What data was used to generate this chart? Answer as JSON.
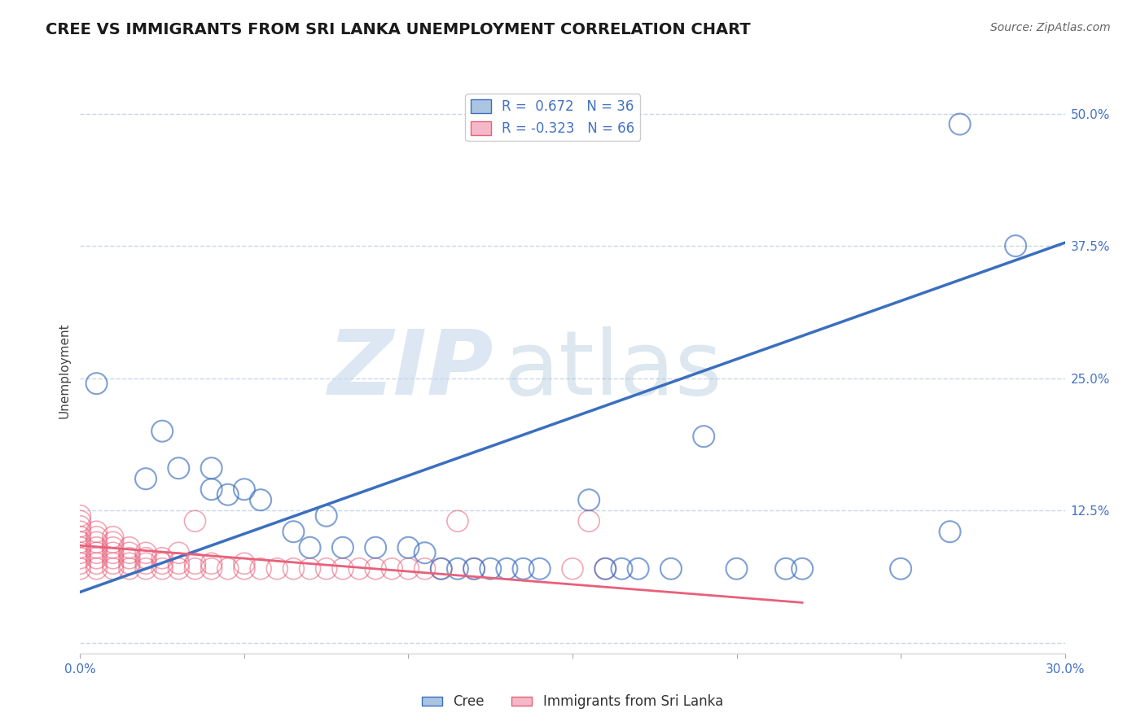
{
  "title": "CREE VS IMMIGRANTS FROM SRI LANKA UNEMPLOYMENT CORRELATION CHART",
  "source": "Source: ZipAtlas.com",
  "ylabel": "Unemployment",
  "xlim": [
    0.0,
    0.3
  ],
  "ylim": [
    -0.01,
    0.525
  ],
  "yticks": [
    0.0,
    0.125,
    0.25,
    0.375,
    0.5
  ],
  "ytick_labels": [
    "",
    "12.5%",
    "25.0%",
    "37.5%",
    "50.0%"
  ],
  "xticks": [
    0.0,
    0.05,
    0.1,
    0.15,
    0.2,
    0.25,
    0.3
  ],
  "xtick_labels": [
    "0.0%",
    "",
    "",
    "",
    "",
    "",
    "30.0%"
  ],
  "legend_r1": "R =  0.672   N = 36",
  "legend_r2": "R = -0.323   N = 66",
  "color_cree": "#aac4e2",
  "color_srilanka": "#f5b8c8",
  "line_color_cree": "#3b6fbe",
  "line_color_srilanka": "#e8607a",
  "cree_points": [
    [
      0.005,
      0.245
    ],
    [
      0.02,
      0.155
    ],
    [
      0.025,
      0.2
    ],
    [
      0.03,
      0.165
    ],
    [
      0.04,
      0.145
    ],
    [
      0.04,
      0.165
    ],
    [
      0.045,
      0.14
    ],
    [
      0.05,
      0.145
    ],
    [
      0.055,
      0.135
    ],
    [
      0.065,
      0.105
    ],
    [
      0.07,
      0.09
    ],
    [
      0.075,
      0.12
    ],
    [
      0.08,
      0.09
    ],
    [
      0.09,
      0.09
    ],
    [
      0.1,
      0.09
    ],
    [
      0.105,
      0.085
    ],
    [
      0.11,
      0.07
    ],
    [
      0.115,
      0.07
    ],
    [
      0.12,
      0.07
    ],
    [
      0.125,
      0.07
    ],
    [
      0.13,
      0.07
    ],
    [
      0.135,
      0.07
    ],
    [
      0.14,
      0.07
    ],
    [
      0.155,
      0.135
    ],
    [
      0.16,
      0.07
    ],
    [
      0.165,
      0.07
    ],
    [
      0.17,
      0.07
    ],
    [
      0.18,
      0.07
    ],
    [
      0.19,
      0.195
    ],
    [
      0.2,
      0.07
    ],
    [
      0.215,
      0.07
    ],
    [
      0.22,
      0.07
    ],
    [
      0.25,
      0.07
    ],
    [
      0.265,
      0.105
    ],
    [
      0.285,
      0.375
    ],
    [
      0.268,
      0.49
    ]
  ],
  "srilanka_points": [
    [
      0.0,
      0.07
    ],
    [
      0.0,
      0.075
    ],
    [
      0.0,
      0.08
    ],
    [
      0.0,
      0.085
    ],
    [
      0.0,
      0.09
    ],
    [
      0.0,
      0.095
    ],
    [
      0.0,
      0.1
    ],
    [
      0.0,
      0.105
    ],
    [
      0.0,
      0.11
    ],
    [
      0.0,
      0.115
    ],
    [
      0.0,
      0.12
    ],
    [
      0.005,
      0.07
    ],
    [
      0.005,
      0.075
    ],
    [
      0.005,
      0.08
    ],
    [
      0.005,
      0.085
    ],
    [
      0.005,
      0.09
    ],
    [
      0.005,
      0.095
    ],
    [
      0.005,
      0.1
    ],
    [
      0.005,
      0.105
    ],
    [
      0.01,
      0.07
    ],
    [
      0.01,
      0.075
    ],
    [
      0.01,
      0.08
    ],
    [
      0.01,
      0.085
    ],
    [
      0.01,
      0.09
    ],
    [
      0.01,
      0.095
    ],
    [
      0.01,
      0.1
    ],
    [
      0.015,
      0.07
    ],
    [
      0.015,
      0.075
    ],
    [
      0.015,
      0.08
    ],
    [
      0.015,
      0.085
    ],
    [
      0.015,
      0.09
    ],
    [
      0.02,
      0.07
    ],
    [
      0.02,
      0.075
    ],
    [
      0.02,
      0.08
    ],
    [
      0.02,
      0.085
    ],
    [
      0.025,
      0.07
    ],
    [
      0.025,
      0.075
    ],
    [
      0.025,
      0.08
    ],
    [
      0.03,
      0.07
    ],
    [
      0.03,
      0.075
    ],
    [
      0.03,
      0.085
    ],
    [
      0.035,
      0.07
    ],
    [
      0.035,
      0.075
    ],
    [
      0.035,
      0.115
    ],
    [
      0.04,
      0.07
    ],
    [
      0.04,
      0.075
    ],
    [
      0.045,
      0.07
    ],
    [
      0.05,
      0.07
    ],
    [
      0.05,
      0.075
    ],
    [
      0.055,
      0.07
    ],
    [
      0.06,
      0.07
    ],
    [
      0.065,
      0.07
    ],
    [
      0.07,
      0.07
    ],
    [
      0.075,
      0.07
    ],
    [
      0.08,
      0.07
    ],
    [
      0.085,
      0.07
    ],
    [
      0.09,
      0.07
    ],
    [
      0.095,
      0.07
    ],
    [
      0.1,
      0.07
    ],
    [
      0.105,
      0.07
    ],
    [
      0.11,
      0.07
    ],
    [
      0.115,
      0.115
    ],
    [
      0.12,
      0.07
    ],
    [
      0.15,
      0.07
    ],
    [
      0.155,
      0.115
    ],
    [
      0.16,
      0.07
    ]
  ],
  "cree_trendline": [
    [
      0.0,
      0.048
    ],
    [
      0.3,
      0.378
    ]
  ],
  "srilanka_trendline": [
    [
      0.0,
      0.092
    ],
    [
      0.22,
      0.038
    ]
  ],
  "background_color": "#ffffff",
  "grid_color": "#c8d8e8",
  "title_fontsize": 14,
  "axis_label_fontsize": 11,
  "tick_fontsize": 11,
  "legend_fontsize": 12
}
